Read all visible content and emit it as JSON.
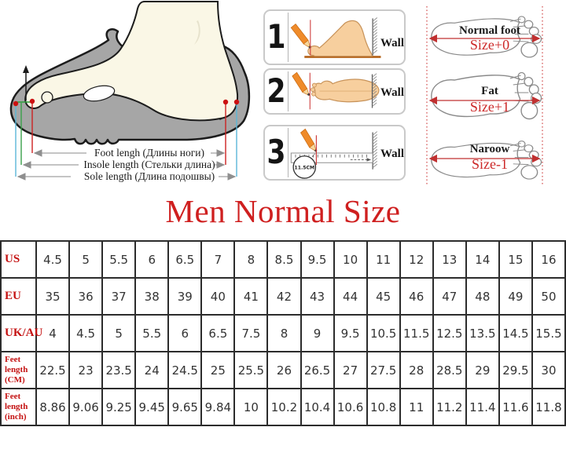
{
  "title": "Men Normal Size",
  "accent_color": "#cc2222",
  "foot_diagram": {
    "measure_labels": [
      "Foot lengh (Длины ноги)",
      "Insole length (Стельки длина)",
      "Sole length (Длина подошвы)"
    ]
  },
  "steps": [
    {
      "number": "1",
      "wall_label": "Wall"
    },
    {
      "number": "2",
      "wall_label": "Wall"
    },
    {
      "number": "3",
      "wall_label": "Wall",
      "ruler_note": "11.5CM"
    }
  ],
  "foot_types": [
    {
      "name": "Normal foot",
      "size": "Size+0"
    },
    {
      "name": "Fat",
      "size": "Size+1"
    },
    {
      "name": "Naroow",
      "size": "Size-1"
    }
  ],
  "size_table": {
    "rows": [
      {
        "label": "US",
        "values": [
          "4.5",
          "5",
          "5.5",
          "6",
          "6.5",
          "7",
          "8",
          "8.5",
          "9.5",
          "10",
          "11",
          "12",
          "13",
          "14",
          "15",
          "16"
        ]
      },
      {
        "label": "EU",
        "values": [
          "35",
          "36",
          "37",
          "38",
          "39",
          "40",
          "41",
          "42",
          "43",
          "44",
          "45",
          "46",
          "47",
          "48",
          "49",
          "50"
        ]
      },
      {
        "label": "UK/AU",
        "values": [
          "4",
          "4.5",
          "5",
          "5.5",
          "6",
          "6.5",
          "7.5",
          "8",
          "9",
          "9.5",
          "10.5",
          "11.5",
          "12.5",
          "13.5",
          "14.5",
          "15.5"
        ]
      },
      {
        "label": "Feet length (CM)",
        "values": [
          "22.5",
          "23",
          "23.5",
          "24",
          "24.5",
          "25",
          "25.5",
          "26",
          "26.5",
          "27",
          "27.5",
          "28",
          "28.5",
          "29",
          "29.5",
          "30"
        ]
      },
      {
        "label": "Feet length (inch)",
        "values": [
          "8.86",
          "9.06",
          "9.25",
          "9.45",
          "9.65",
          "9.84",
          "10",
          "10.2",
          "10.4",
          "10.6",
          "10.8",
          "11",
          "11.2",
          "11.4",
          "11.6",
          "11.8"
        ]
      }
    ]
  }
}
